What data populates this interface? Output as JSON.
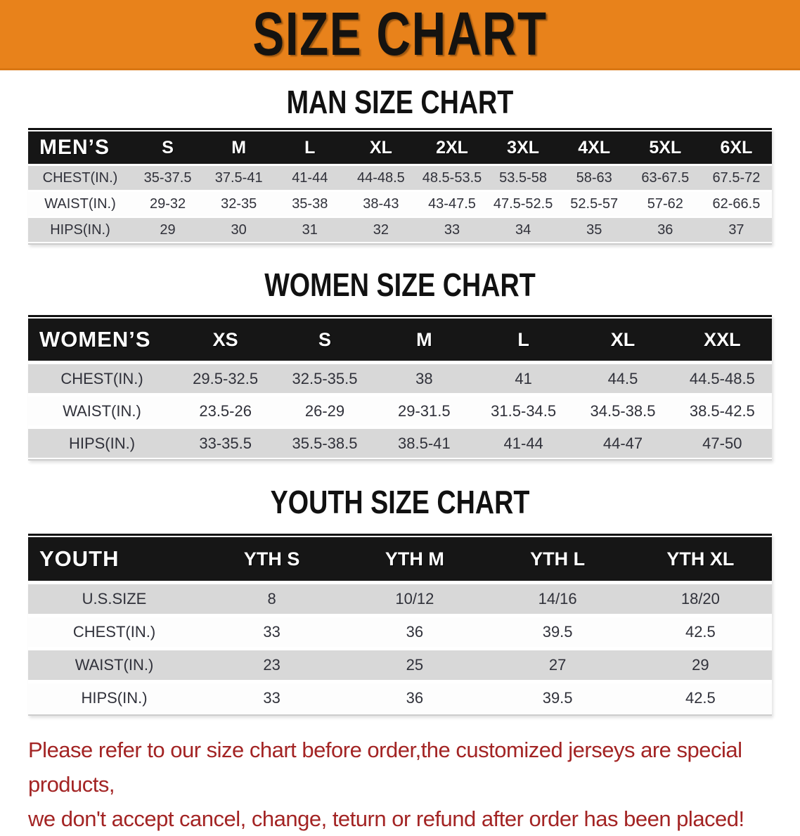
{
  "banner": {
    "title": "SIZE CHART",
    "bg_color": "#e8821b"
  },
  "colors": {
    "table_header_bg": "#161616",
    "row_alt_bg": "#d8d8d8",
    "row_bg": "#fdfdfd",
    "footer_text": "#a32424"
  },
  "sections": [
    {
      "key": "men",
      "title": "MAN SIZE CHART",
      "corner": "MEN’S",
      "columns": [
        "S",
        "M",
        "L",
        "XL",
        "2XL",
        "3XL",
        "4XL",
        "5XL",
        "6XL"
      ],
      "rows": [
        {
          "label": "CHEST(IN.)",
          "values": [
            "35-37.5",
            "37.5-41",
            "41-44",
            "44-48.5",
            "48.5-53.5",
            "53.5-58",
            "58-63",
            "63-67.5",
            "67.5-72"
          ]
        },
        {
          "label": "WAIST(IN.)",
          "values": [
            "29-32",
            "32-35",
            "35-38",
            "38-43",
            "43-47.5",
            "47.5-52.5",
            "52.5-57",
            "57-62",
            "62-66.5"
          ]
        },
        {
          "label": "HIPS(IN.)",
          "values": [
            "29",
            "30",
            "31",
            "32",
            "33",
            "34",
            "35",
            "36",
            "37"
          ]
        }
      ]
    },
    {
      "key": "women",
      "title": "WOMEN SIZE CHART",
      "corner": "WOMEN’S",
      "columns": [
        "XS",
        "S",
        "M",
        "L",
        "XL",
        "XXL"
      ],
      "rows": [
        {
          "label": "CHEST(IN.)",
          "values": [
            "29.5-32.5",
            "32.5-35.5",
            "38",
            "41",
            "44.5",
            "44.5-48.5"
          ]
        },
        {
          "label": "WAIST(IN.)",
          "values": [
            "23.5-26",
            "26-29",
            "29-31.5",
            "31.5-34.5",
            "34.5-38.5",
            "38.5-42.5"
          ]
        },
        {
          "label": "HIPS(IN.)",
          "values": [
            "33-35.5",
            "35.5-38.5",
            "38.5-41",
            "41-44",
            "44-47",
            "47-50"
          ]
        }
      ]
    },
    {
      "key": "youth",
      "title": "YOUTH SIZE CHART",
      "corner": "YOUTH",
      "columns": [
        "YTH S",
        "YTH M",
        "YTH L",
        "YTH XL"
      ],
      "rows": [
        {
          "label": "U.S.SIZE",
          "values": [
            "8",
            "10/12",
            "14/16",
            "18/20"
          ]
        },
        {
          "label": "CHEST(IN.)",
          "values": [
            "33",
            "36",
            "39.5",
            "42.5"
          ]
        },
        {
          "label": "WAIST(IN.)",
          "values": [
            "23",
            "25",
            "27",
            "29"
          ]
        },
        {
          "label": "HIPS(IN.)",
          "values": [
            "33",
            "36",
            "39.5",
            "42.5"
          ]
        }
      ]
    }
  ],
  "footer": {
    "line1": "Please refer to our size chart before order,the customized jerseys are special products,",
    "line2": "we don't accept cancel, change, teturn or refund after order has been placed!"
  }
}
